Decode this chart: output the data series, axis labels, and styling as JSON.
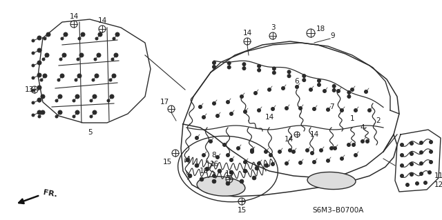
{
  "bg_color": "#ffffff",
  "line_color": "#2a2a2a",
  "text_color": "#1a1a1a",
  "diagram_code": "S6M3–B0700A",
  "fr_label": "FR.",
  "figsize": [
    6.4,
    3.19
  ],
  "dpi": 100
}
